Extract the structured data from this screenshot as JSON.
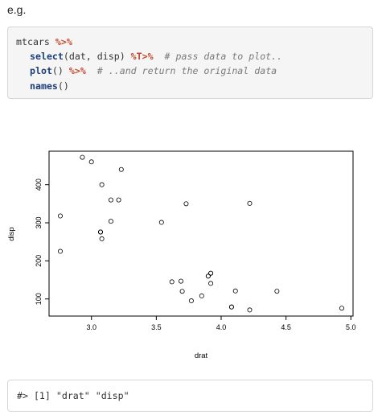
{
  "intro_text": "e.g.",
  "code": {
    "line1": {
      "text": "mtcars ",
      "op": "%>%"
    },
    "line2": {
      "fn": "select",
      "args": "(dat, disp) ",
      "op": "%T>%",
      "comment": "# pass data to plot.."
    },
    "line3": {
      "fn": "plot",
      "args": "() ",
      "op": "%>%",
      "comment": "# ..and return the original data"
    },
    "line4": {
      "fn": "names",
      "args": "()"
    }
  },
  "output_text": "#> [1] \"drat\" \"disp\"",
  "chart_data": {
    "type": "scatter",
    "xlabel": "drat",
    "ylabel": "disp",
    "xlim": [
      2.76,
      4.93
    ],
    "ylim": [
      71.1,
      472
    ],
    "x_ticks": [
      "3.0",
      "3.5",
      "4.0",
      "4.5",
      "5.0"
    ],
    "y_ticks": [
      "100",
      "200",
      "300",
      "400"
    ],
    "marker": "open-circle",
    "grid": false,
    "x": [
      3.9,
      3.9,
      3.85,
      3.08,
      3.15,
      2.76,
      3.21,
      3.69,
      3.92,
      3.92,
      3.92,
      3.07,
      3.07,
      3.07,
      2.93,
      3.0,
      3.23,
      4.08,
      4.93,
      4.22,
      3.7,
      2.76,
      3.15,
      3.73,
      3.08,
      4.08,
      4.43,
      3.77,
      4.22,
      3.62,
      3.54,
      4.11
    ],
    "y": [
      160,
      160,
      108,
      258,
      360,
      225,
      360,
      146.7,
      140.8,
      167.6,
      167.6,
      275.8,
      275.8,
      275.8,
      472,
      460,
      440,
      78.7,
      75.7,
      71.1,
      120.1,
      318,
      304,
      350,
      400,
      79,
      120.3,
      95.1,
      351,
      145,
      301,
      121
    ]
  }
}
